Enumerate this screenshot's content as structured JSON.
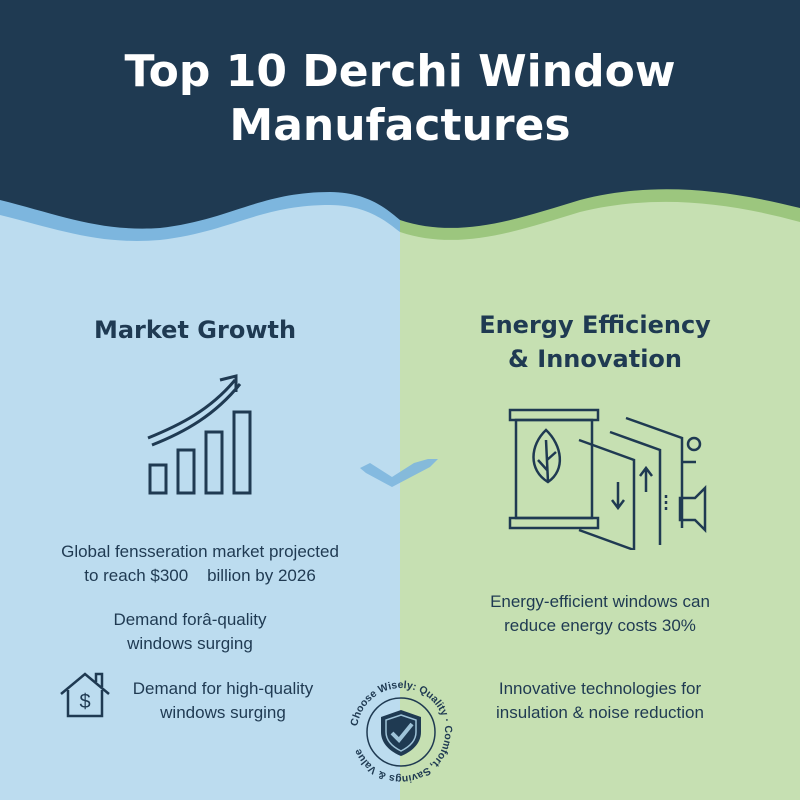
{
  "title_line1": "Top 10 Derchi Window",
  "title_line2": "Manufactures",
  "colors": {
    "header": "#1f3a52",
    "left_bg": "#bcdcef",
    "right_bg": "#c6e0b2",
    "left_wave": "#7db6de",
    "right_wave": "#9cc67e",
    "ink": "#1f3a52"
  },
  "left": {
    "heading": "Market Growth",
    "icon": "growth-chart-icon",
    "stat_line1": "Global fensseration market projected",
    "stat_line2": "to reach $300    billion by 2026",
    "demand1_line1": "Demand forâ-quality",
    "demand1_line2": "windows surging",
    "demand2_icon": "house-dollar-icon",
    "demand2_line1": "Demand for high-quality",
    "demand2_line2": "windows surging"
  },
  "right": {
    "heading_line1": "Energy Efficiency",
    "heading_line2": "& Innovation",
    "icon": "window-panels-leaf-icon",
    "energy_line1": "Energy-efficient windows can",
    "energy_line2": "reduce energy costs 30%",
    "innov_line1": "Innovative technologies for",
    "innov_line2": "insulation & noise reduction"
  },
  "badge": {
    "icon": "shield-check-icon",
    "text": "Choose Wisely: Quality · Comfort, Savings & Value"
  }
}
